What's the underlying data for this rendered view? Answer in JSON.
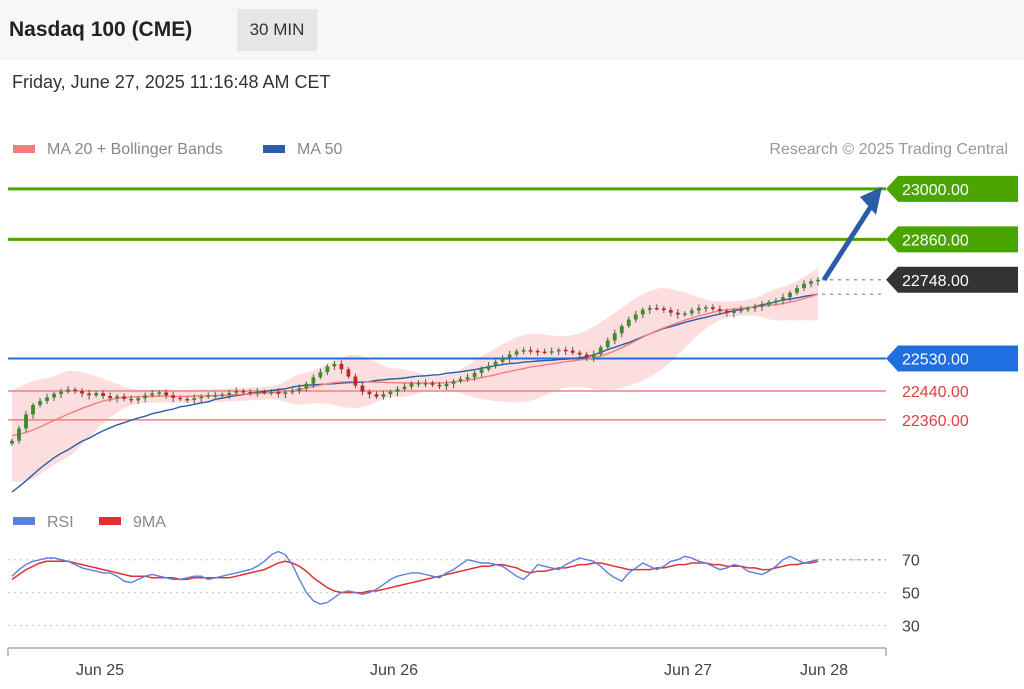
{
  "header": {
    "title": "Nasdaq 100 (CME)",
    "timeframe": "30 MIN",
    "date": "Friday, June 27, 2025 11:16:48 AM CET"
  },
  "legend": {
    "items": [
      {
        "label": "MA 20 + Bollinger Bands",
        "color": "#f08080"
      },
      {
        "label": "MA 50",
        "color": "#2a5ca8"
      }
    ],
    "credit": "Research © 2025 Trading Central"
  },
  "colors": {
    "green": "#4aa500",
    "blue": "#1f6fe0",
    "red": "#e04040",
    "dark": "#333333",
    "candle": "#3a8f2a",
    "candle_down": "#cc2222",
    "rsi": "#5b7fe0",
    "rsi_ma": "#e03030"
  },
  "chart_data": [
    {
      "type": "line",
      "subtype": "candlestick",
      "y_range": [
        22160,
        23080
      ],
      "x_ticks": [
        "Jun 25",
        "Jun 26",
        "Jun 27",
        "Jun 28"
      ],
      "levels": [
        {
          "value": 23000,
          "label": "23000.00",
          "kind": "resistance"
        },
        {
          "value": 22860,
          "label": "22860.00",
          "kind": "resistance"
        },
        {
          "value": 22748,
          "label": "22748.00",
          "kind": "current"
        },
        {
          "value": 22530,
          "label": "22530.00",
          "kind": "pivot"
        },
        {
          "value": 22440,
          "label": "22440.00",
          "kind": "support"
        },
        {
          "value": 22360,
          "label": "22360.00",
          "kind": "support"
        }
      ],
      "close": [
        22302,
        22336,
        22375,
        22401,
        22412,
        22422,
        22432,
        22438,
        22444,
        22440,
        22433,
        22428,
        22434,
        22426,
        22420,
        22425,
        22418,
        22414,
        22420,
        22428,
        22433,
        22436,
        22428,
        22421,
        22418,
        22415,
        22420,
        22424,
        22428,
        22428,
        22430,
        22435,
        22440,
        22437,
        22436,
        22438,
        22436,
        22437,
        22432,
        22436,
        22440,
        22448,
        22460,
        22478,
        22492,
        22508,
        22515,
        22500,
        22480,
        22455,
        22438,
        22431,
        22424,
        22431,
        22438,
        22445,
        22452,
        22461,
        22462,
        22462,
        22457,
        22453,
        22460,
        22467,
        22473,
        22478,
        22490,
        22500,
        22510,
        22521,
        22531,
        22541,
        22550,
        22553,
        22551,
        22549,
        22548,
        22550,
        22554,
        22552,
        22546,
        22541,
        22533,
        22542,
        22561,
        22580,
        22600,
        22620,
        22638,
        22652,
        22665,
        22670,
        22669,
        22664,
        22657,
        22652,
        22655,
        22663,
        22670,
        22672,
        22667,
        22662,
        22656,
        22661,
        22666,
        22669,
        22674,
        22679,
        22686,
        22690,
        22700,
        22712,
        22725,
        22737,
        22744,
        22748
      ],
      "ma50": [
        22160,
        22175,
        22191,
        22208,
        22225,
        22240,
        22255,
        22267,
        22277,
        22289,
        22301,
        22309,
        22320,
        22330,
        22338,
        22346,
        22352,
        22359,
        22365,
        22370,
        22377,
        22381,
        22386,
        22390,
        22396,
        22399,
        22403,
        22407,
        22410,
        22417,
        22420,
        22424,
        22427,
        22430,
        22433,
        22436,
        22439,
        22441,
        22444,
        22446,
        22451,
        22454,
        22456,
        22457,
        22458,
        22459,
        22460,
        22462,
        22463,
        22464,
        22464,
        22466,
        22469,
        22471,
        22473,
        22474,
        22476,
        22479,
        22481,
        22482,
        22484,
        22485,
        22489,
        22491,
        22493,
        22496,
        22499,
        22503,
        22506,
        22510,
        22513,
        22516,
        22517,
        22520,
        22521,
        22523,
        22524,
        22525,
        22527,
        22528,
        22530,
        22532,
        22535,
        22540,
        22547,
        22555,
        22561,
        22568,
        22574,
        22582,
        22590,
        22598,
        22606,
        22613,
        22618,
        22624,
        22630,
        22635,
        22640,
        22644,
        22649,
        22653,
        22658,
        22662,
        22666,
        22670,
        22674,
        22679,
        22682,
        22687,
        22692,
        22695,
        22698,
        22702,
        22705,
        22708
      ],
      "ma20": [
        22316,
        22320,
        22325,
        22332,
        22340,
        22349,
        22358,
        22367,
        22376,
        22384,
        22392,
        22399,
        22406,
        22412,
        22416,
        22420,
        22422,
        22423,
        22424,
        22425,
        22425,
        22426,
        22426,
        22425,
        22425,
        22425,
        22426,
        22426,
        22426,
        22427,
        22428,
        22429,
        22430,
        22431,
        22432,
        22433,
        22434,
        22435,
        22436,
        22438,
        22441,
        22444,
        22448,
        22452,
        22456,
        22460,
        22463,
        22465,
        22466,
        22466,
        22466,
        22465,
        22464,
        22464,
        22463,
        22463,
        22462,
        22462,
        22462,
        22462,
        22462,
        22462,
        22463,
        22465,
        22467,
        22470,
        22473,
        22477,
        22481,
        22485,
        22490,
        22494,
        22498,
        22502,
        22506,
        22509,
        22512,
        22515,
        22518,
        22521,
        22523,
        22526,
        22528,
        22532,
        22537,
        22543,
        22551,
        22560,
        22569,
        22579,
        22589,
        22598,
        22607,
        22615,
        22622,
        22629,
        22636,
        22642,
        22648,
        22653,
        22658,
        22662,
        22665,
        22667,
        22669,
        22671,
        22673,
        22675,
        22677,
        22679,
        22682,
        22686,
        22690,
        22696,
        22702,
        22708
      ]
    },
    {
      "type": "line",
      "title": "",
      "series_names": [
        "RSI",
        "9MA"
      ],
      "y_range": [
        20,
        85
      ],
      "y_ticks": [
        70,
        50,
        30
      ],
      "rsi": [
        60,
        64,
        67,
        69,
        70,
        71,
        71,
        70,
        69,
        67,
        65,
        64,
        63,
        62,
        62,
        60,
        57,
        56,
        58,
        60,
        61,
        60,
        59,
        58,
        58,
        59,
        60,
        60,
        58,
        59,
        60,
        61,
        62,
        63,
        64,
        66,
        69,
        73,
        75,
        73,
        67,
        58,
        50,
        45,
        43,
        44,
        47,
        50,
        51,
        50,
        49,
        50,
        52,
        55,
        58,
        60,
        61,
        62,
        62,
        61,
        60,
        59,
        62,
        64,
        67,
        70,
        69,
        68,
        68,
        67,
        66,
        63,
        60,
        58,
        62,
        67,
        66,
        65,
        64,
        67,
        69,
        71,
        70,
        69,
        66,
        62,
        59,
        57,
        62,
        65,
        68,
        66,
        64,
        66,
        69,
        70,
        72,
        71,
        69,
        68,
        66,
        64,
        65,
        67,
        66,
        63,
        62,
        61,
        63,
        66,
        70,
        72,
        70,
        68,
        69,
        70
      ],
      "ma9": [
        58,
        61,
        64,
        66,
        68,
        69,
        69,
        69,
        69,
        68,
        67,
        66,
        65,
        64,
        63,
        62,
        61,
        60,
        60,
        60,
        59,
        59,
        59,
        59,
        58,
        58,
        59,
        59,
        59,
        59,
        59,
        59,
        60,
        61,
        62,
        63,
        64,
        66,
        68,
        69,
        68,
        66,
        63,
        59,
        56,
        53,
        51,
        50,
        50,
        50,
        50,
        51,
        51,
        52,
        53,
        54,
        55,
        56,
        57,
        58,
        59,
        60,
        61,
        62,
        63,
        64,
        65,
        66,
        66,
        67,
        67,
        66,
        65,
        63,
        62,
        63,
        63,
        64,
        65,
        65,
        66,
        67,
        67,
        68,
        68,
        67,
        66,
        65,
        64,
        64,
        64,
        64,
        65,
        65,
        66,
        67,
        67,
        68,
        68,
        68,
        67,
        67,
        66,
        66,
        66,
        65,
        65,
        64,
        64,
        65,
        66,
        67,
        67,
        68,
        68,
        69
      ]
    }
  ]
}
